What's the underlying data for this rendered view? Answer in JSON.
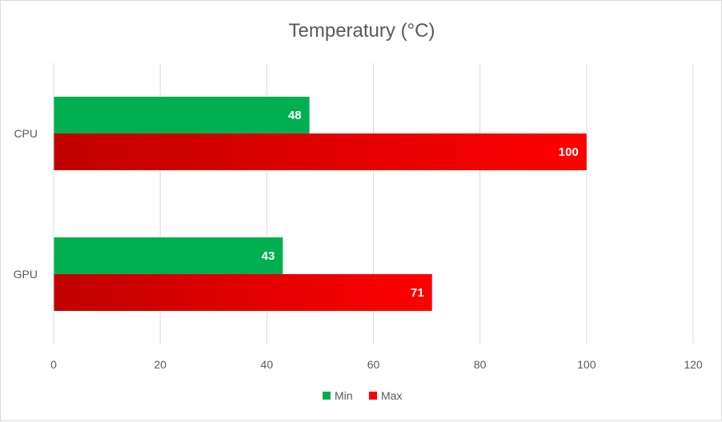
{
  "chart_data": {
    "type": "bar",
    "orientation": "horizontal",
    "title": "Temperatury (°C)",
    "categories": [
      "CPU",
      "GPU"
    ],
    "series": [
      {
        "name": "Min",
        "values": [
          48,
          43
        ],
        "color": "#00b050"
      },
      {
        "name": "Max",
        "values": [
          100,
          71
        ],
        "color": "#ff0000",
        "gradient_from": "#c00000"
      }
    ],
    "x_ticks": [
      "0",
      "20",
      "40",
      "60",
      "80",
      "100",
      "120"
    ],
    "xlim": [
      0,
      120
    ],
    "grid": true,
    "legend_position": "bottom",
    "data_labels": true
  }
}
